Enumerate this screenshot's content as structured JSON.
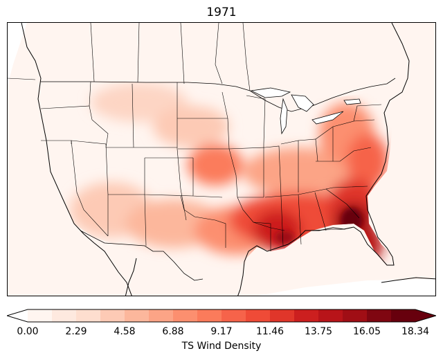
{
  "title": "1971",
  "colorbar": {
    "label": "TS Wind Density",
    "ticks": [
      "0.00",
      "2.29",
      "4.58",
      "6.88",
      "9.17",
      "11.46",
      "13.75",
      "16.05",
      "18.34"
    ],
    "min": 0.0,
    "max": 18.34,
    "extend": "both",
    "colormap": "Reds"
  },
  "colors": {
    "levels": [
      "#fff5f0",
      "#fee9df",
      "#fedecf",
      "#fdcab5",
      "#fcb79c",
      "#fca486",
      "#fc8f6f",
      "#fb7b5b",
      "#f6634a",
      "#ef4b37",
      "#e0362a",
      "#cc1f1f",
      "#b81419",
      "#a00e15",
      "#7f0611",
      "#67000d"
    ]
  }
}
